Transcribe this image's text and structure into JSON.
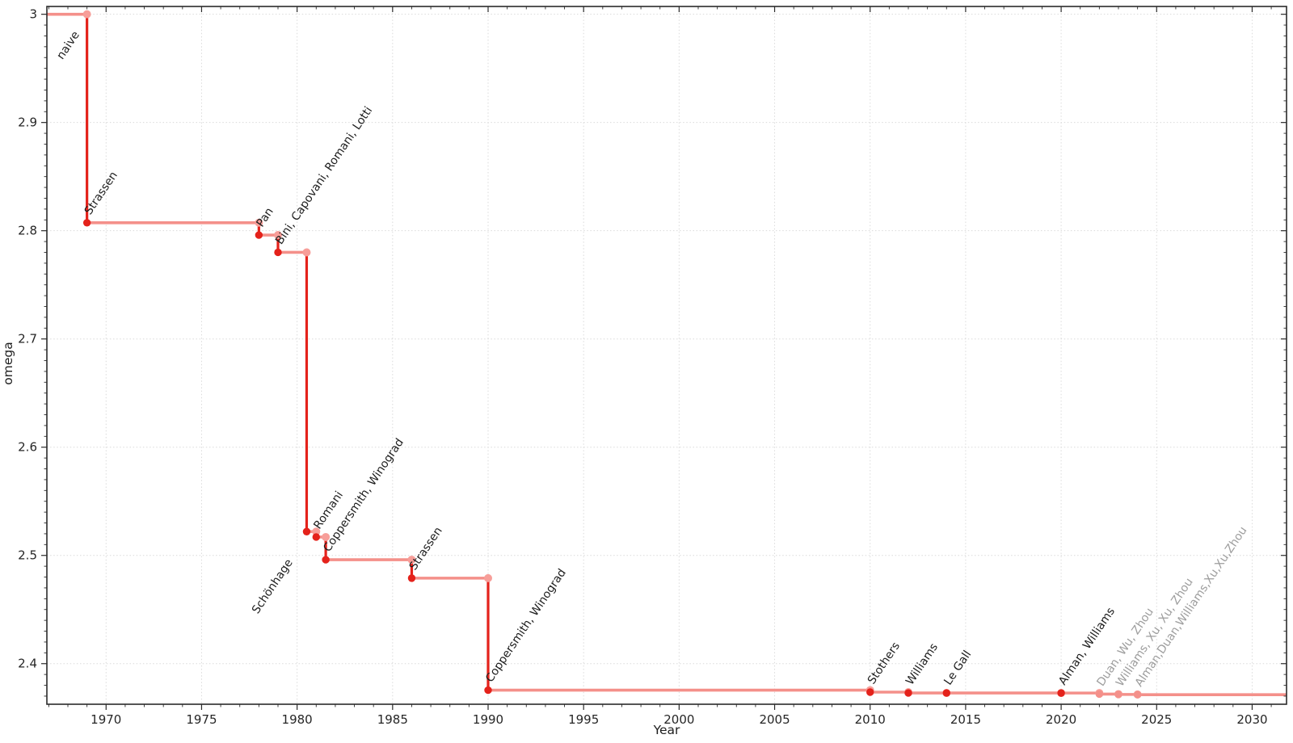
{
  "chart_data": {
    "type": "line",
    "subtype": "step-post",
    "title": "",
    "xlabel": "Year",
    "ylabel": "omega",
    "xlim": [
      1966.9,
      2031.8
    ],
    "ylim": [
      2.3625,
      3.0072
    ],
    "x_ticks": [
      1970,
      1975,
      1980,
      1985,
      1990,
      1995,
      2000,
      2005,
      2010,
      2015,
      2020,
      2025,
      2030
    ],
    "y_ticks": [
      {
        "value": 3.0,
        "label": "3"
      },
      {
        "value": 2.9,
        "label": "2.9"
      },
      {
        "value": 2.8,
        "label": "2.8"
      },
      {
        "value": 2.7,
        "label": "2.7"
      },
      {
        "value": 2.6,
        "label": "2.6"
      },
      {
        "value": 2.5,
        "label": "2.5"
      },
      {
        "value": 2.4,
        "label": "2.4"
      }
    ],
    "x_minor_step": 1,
    "y_minor_step": 0.01,
    "grid": "dotted-major-both-axes",
    "legend": "none",
    "initial": {
      "label": "naive",
      "omega": 3
    },
    "improvements": [
      {
        "year": 1969,
        "omega": 2.8074,
        "label": "Strassen",
        "muted": false
      },
      {
        "year": 1978,
        "omega": 2.796,
        "label": "Pan",
        "muted": false
      },
      {
        "year": 1979,
        "omega": 2.78,
        "label": "Bini, Capovani, Romani, Lotti",
        "muted": false
      },
      {
        "year": 1980.5,
        "omega": 2.522,
        "label": "Schönhage",
        "muted": false,
        "label_side": "below"
      },
      {
        "year": 1981,
        "omega": 2.517,
        "label": "Romani",
        "muted": false
      },
      {
        "year": 1981.5,
        "omega": 2.496,
        "label": "Coppersmith, Winograd",
        "muted": false
      },
      {
        "year": 1986,
        "omega": 2.479,
        "label": "Strassen",
        "muted": false
      },
      {
        "year": 1990,
        "omega": 2.3755,
        "label": "Coppersmith, Winograd",
        "muted": false
      },
      {
        "year": 2010,
        "omega": 2.3737,
        "label": "Stothers",
        "muted": false
      },
      {
        "year": 2012,
        "omega": 2.3729,
        "label": "Williams",
        "muted": false
      },
      {
        "year": 2014,
        "omega": 2.3728639,
        "label": "Le Gall",
        "muted": false
      },
      {
        "year": 2020,
        "omega": 2.3728596,
        "label": "Alman, Williams",
        "muted": false
      },
      {
        "year": 2022,
        "omega": 2.371866,
        "label": "Duan, Wu, Zhou",
        "muted": true
      },
      {
        "year": 2023,
        "omega": 2.371552,
        "label": "Williams, Xu, Xu, Zhou",
        "muted": true
      },
      {
        "year": 2024,
        "omega": 2.371339,
        "label": "Alman,Duan,Williams,Xu,Xu,Zhou",
        "muted": true
      }
    ],
    "colors": {
      "plateau_line": "#f4908a",
      "drop_line": "#e4221b",
      "marker_corner": "#f79e99",
      "marker_record": "#e4221b",
      "marker_muted": "#f4908a",
      "label": "#1d1d1d",
      "label_muted": "#9d9d9d",
      "axis": "#2b2b2b",
      "grid": "#dadada",
      "background": "#ffffff"
    }
  }
}
